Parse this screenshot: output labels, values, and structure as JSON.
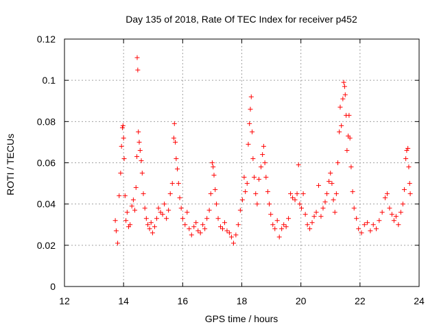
{
  "chart_data": {
    "type": "scatter",
    "title": "Day 135 of 2018, Rate Of TEC Index for receiver p452",
    "xlabel": "GPS time / hours",
    "ylabel": "ROTI / TECUs",
    "xlim": [
      12,
      24
    ],
    "ylim": [
      0,
      0.12
    ],
    "xticks": [
      12,
      14,
      16,
      18,
      20,
      22,
      24
    ],
    "xtick_labels": [
      "12",
      "14",
      "16",
      "18",
      "20",
      "22",
      "24"
    ],
    "yticks": [
      0,
      0.02,
      0.04,
      0.06,
      0.08,
      0.1,
      0.12
    ],
    "ytick_labels": [
      "0",
      "0.02",
      "0.04",
      "0.06",
      "0.08",
      "0.1",
      "0.12"
    ],
    "grid": true,
    "marker": "+",
    "marker_color": "#ff0000",
    "series": [
      {
        "name": "ROTI",
        "points": [
          [
            13.72,
            0.032
          ],
          [
            13.75,
            0.027
          ],
          [
            13.8,
            0.021
          ],
          [
            13.85,
            0.044
          ],
          [
            13.9,
            0.055
          ],
          [
            13.93,
            0.068
          ],
          [
            13.96,
            0.077
          ],
          [
            13.98,
            0.078
          ],
          [
            14.0,
            0.072
          ],
          [
            14.02,
            0.062
          ],
          [
            14.05,
            0.044
          ],
          [
            14.08,
            0.032
          ],
          [
            14.12,
            0.036
          ],
          [
            14.17,
            0.029
          ],
          [
            14.22,
            0.03
          ],
          [
            14.28,
            0.039
          ],
          [
            14.33,
            0.042
          ],
          [
            14.38,
            0.037
          ],
          [
            14.42,
            0.048
          ],
          [
            14.45,
            0.063
          ],
          [
            14.46,
            0.111
          ],
          [
            14.48,
            0.105
          ],
          [
            14.5,
            0.075
          ],
          [
            14.53,
            0.07
          ],
          [
            14.56,
            0.066
          ],
          [
            14.6,
            0.061
          ],
          [
            14.63,
            0.055
          ],
          [
            14.67,
            0.045
          ],
          [
            14.72,
            0.038
          ],
          [
            14.77,
            0.033
          ],
          [
            14.82,
            0.03
          ],
          [
            14.88,
            0.028
          ],
          [
            14.93,
            0.031
          ],
          [
            14.98,
            0.026
          ],
          [
            15.05,
            0.029
          ],
          [
            15.12,
            0.033
          ],
          [
            15.18,
            0.038
          ],
          [
            15.25,
            0.036
          ],
          [
            15.32,
            0.035
          ],
          [
            15.38,
            0.04
          ],
          [
            15.45,
            0.033
          ],
          [
            15.52,
            0.037
          ],
          [
            15.58,
            0.045
          ],
          [
            15.65,
            0.05
          ],
          [
            15.7,
            0.072
          ],
          [
            15.72,
            0.079
          ],
          [
            15.75,
            0.07
          ],
          [
            15.78,
            0.062
          ],
          [
            15.82,
            0.057
          ],
          [
            15.86,
            0.05
          ],
          [
            15.9,
            0.043
          ],
          [
            15.95,
            0.038
          ],
          [
            16.0,
            0.033
          ],
          [
            16.08,
            0.03
          ],
          [
            16.15,
            0.036
          ],
          [
            16.22,
            0.028
          ],
          [
            16.3,
            0.025
          ],
          [
            16.38,
            0.029
          ],
          [
            16.45,
            0.031
          ],
          [
            16.52,
            0.027
          ],
          [
            16.6,
            0.026
          ],
          [
            16.68,
            0.03
          ],
          [
            16.75,
            0.028
          ],
          [
            16.82,
            0.033
          ],
          [
            16.9,
            0.037
          ],
          [
            16.95,
            0.045
          ],
          [
            17.0,
            0.06
          ],
          [
            17.03,
            0.058
          ],
          [
            17.06,
            0.054
          ],
          [
            17.1,
            0.047
          ],
          [
            17.14,
            0.04
          ],
          [
            17.2,
            0.033
          ],
          [
            17.28,
            0.029
          ],
          [
            17.35,
            0.028
          ],
          [
            17.42,
            0.031
          ],
          [
            17.5,
            0.027
          ],
          [
            17.58,
            0.026
          ],
          [
            17.65,
            0.024
          ],
          [
            17.72,
            0.021
          ],
          [
            17.8,
            0.025
          ],
          [
            17.88,
            0.03
          ],
          [
            17.95,
            0.037
          ],
          [
            18.02,
            0.042
          ],
          [
            18.08,
            0.053
          ],
          [
            18.12,
            0.046
          ],
          [
            18.18,
            0.05
          ],
          [
            18.22,
            0.069
          ],
          [
            18.26,
            0.079
          ],
          [
            18.29,
            0.086
          ],
          [
            18.32,
            0.092
          ],
          [
            18.35,
            0.075
          ],
          [
            18.38,
            0.062
          ],
          [
            18.42,
            0.053
          ],
          [
            18.47,
            0.045
          ],
          [
            18.52,
            0.04
          ],
          [
            18.58,
            0.052
          ],
          [
            18.65,
            0.058
          ],
          [
            18.7,
            0.064
          ],
          [
            18.74,
            0.068
          ],
          [
            18.78,
            0.06
          ],
          [
            18.82,
            0.053
          ],
          [
            18.88,
            0.046
          ],
          [
            18.93,
            0.04
          ],
          [
            18.98,
            0.035
          ],
          [
            19.05,
            0.03
          ],
          [
            19.12,
            0.028
          ],
          [
            19.2,
            0.032
          ],
          [
            19.27,
            0.024
          ],
          [
            19.35,
            0.028
          ],
          [
            19.42,
            0.03
          ],
          [
            19.5,
            0.029
          ],
          [
            19.58,
            0.033
          ],
          [
            19.65,
            0.045
          ],
          [
            19.72,
            0.043
          ],
          [
            19.8,
            0.042
          ],
          [
            19.87,
            0.045
          ],
          [
            19.92,
            0.059
          ],
          [
            19.96,
            0.04
          ],
          [
            20.02,
            0.038
          ],
          [
            20.08,
            0.045
          ],
          [
            20.15,
            0.035
          ],
          [
            20.22,
            0.03
          ],
          [
            20.3,
            0.028
          ],
          [
            20.38,
            0.031
          ],
          [
            20.45,
            0.034
          ],
          [
            20.52,
            0.036
          ],
          [
            20.6,
            0.049
          ],
          [
            20.68,
            0.034
          ],
          [
            20.75,
            0.038
          ],
          [
            20.82,
            0.041
          ],
          [
            20.88,
            0.045
          ],
          [
            20.95,
            0.051
          ],
          [
            21.0,
            0.055
          ],
          [
            21.05,
            0.05
          ],
          [
            21.1,
            0.042
          ],
          [
            21.15,
            0.036
          ],
          [
            21.2,
            0.045
          ],
          [
            21.25,
            0.06
          ],
          [
            21.3,
            0.075
          ],
          [
            21.33,
            0.087
          ],
          [
            21.37,
            0.078
          ],
          [
            21.42,
            0.091
          ],
          [
            21.45,
            0.099
          ],
          [
            21.48,
            0.097
          ],
          [
            21.5,
            0.093
          ],
          [
            21.53,
            0.083
          ],
          [
            21.56,
            0.066
          ],
          [
            21.6,
            0.073
          ],
          [
            21.63,
            0.083
          ],
          [
            21.66,
            0.072
          ],
          [
            21.7,
            0.058
          ],
          [
            21.75,
            0.046
          ],
          [
            21.8,
            0.038
          ],
          [
            21.88,
            0.033
          ],
          [
            21.95,
            0.028
          ],
          [
            22.05,
            0.026
          ],
          [
            22.15,
            0.03
          ],
          [
            22.25,
            0.031
          ],
          [
            22.35,
            0.027
          ],
          [
            22.45,
            0.03
          ],
          [
            22.55,
            0.028
          ],
          [
            22.65,
            0.032
          ],
          [
            22.75,
            0.036
          ],
          [
            22.85,
            0.043
          ],
          [
            22.92,
            0.045
          ],
          [
            23.0,
            0.038
          ],
          [
            23.08,
            0.035
          ],
          [
            23.15,
            0.032
          ],
          [
            23.22,
            0.034
          ],
          [
            23.3,
            0.03
          ],
          [
            23.38,
            0.036
          ],
          [
            23.45,
            0.04
          ],
          [
            23.5,
            0.047
          ],
          [
            23.55,
            0.062
          ],
          [
            23.58,
            0.066
          ],
          [
            23.62,
            0.067
          ],
          [
            23.65,
            0.058
          ],
          [
            23.68,
            0.05
          ],
          [
            23.7,
            0.045
          ]
        ]
      }
    ]
  }
}
